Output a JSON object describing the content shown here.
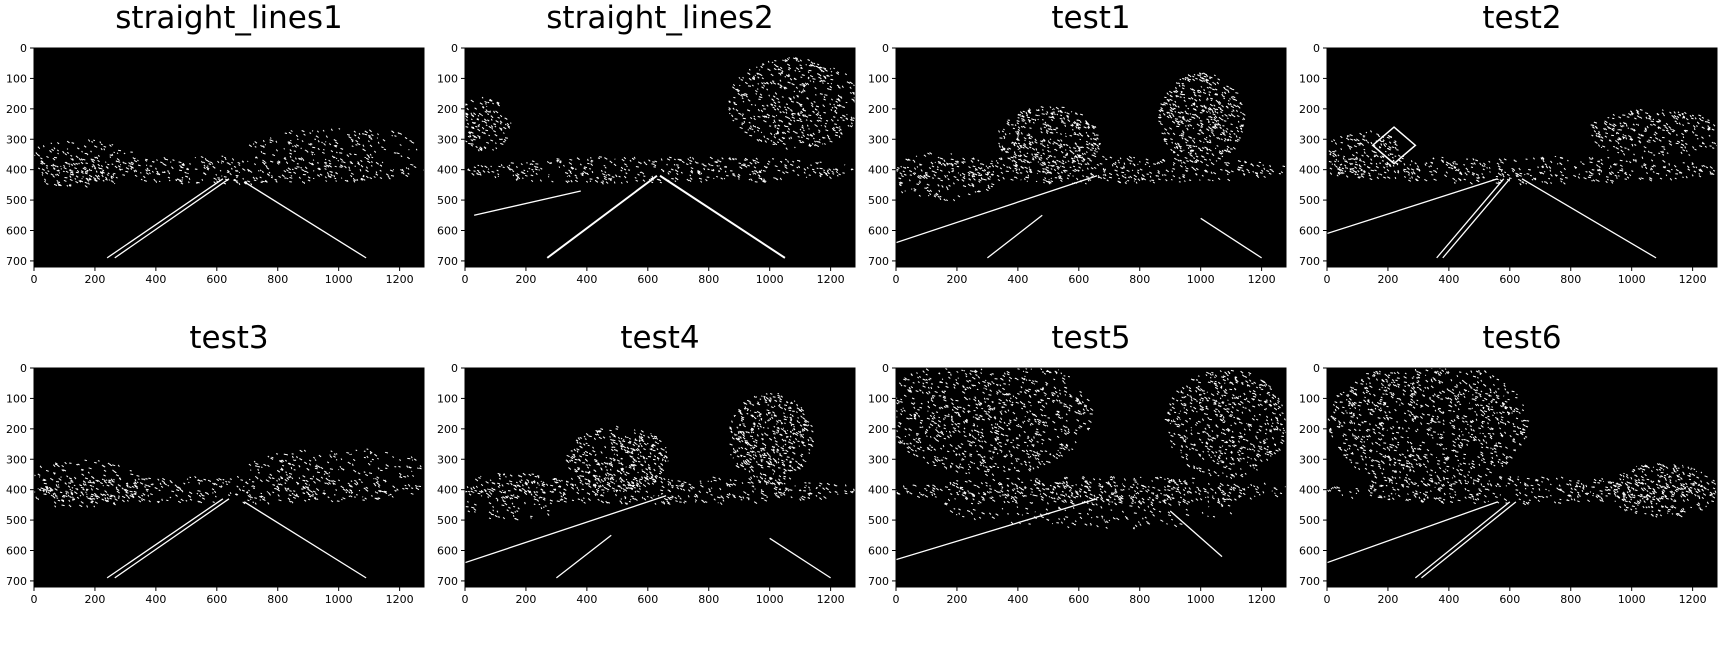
{
  "figure": {
    "background": "#ffffff",
    "image_background": "#000000",
    "edge_color": "#ffffff",
    "panels": [
      {
        "title": "straight_lines1",
        "scene": "straight"
      },
      {
        "title": "straight_lines2",
        "scene": "straight-trees"
      },
      {
        "title": "test1",
        "scene": "curve-left-trees"
      },
      {
        "title": "test2",
        "scene": "sign"
      },
      {
        "title": "test3",
        "scene": "straight"
      },
      {
        "title": "test4",
        "scene": "curve-left-trees"
      },
      {
        "title": "test5",
        "scene": "dense-trees"
      },
      {
        "title": "test6",
        "scene": "dense-trees-left"
      }
    ],
    "x_ticks": [
      "0",
      "200",
      "400",
      "600",
      "800",
      "1000",
      "1200"
    ],
    "y_ticks": [
      "0",
      "100",
      "200",
      "300",
      "400",
      "500",
      "600",
      "700"
    ],
    "x_range": [
      0,
      1280
    ],
    "y_range": [
      720,
      0
    ]
  }
}
